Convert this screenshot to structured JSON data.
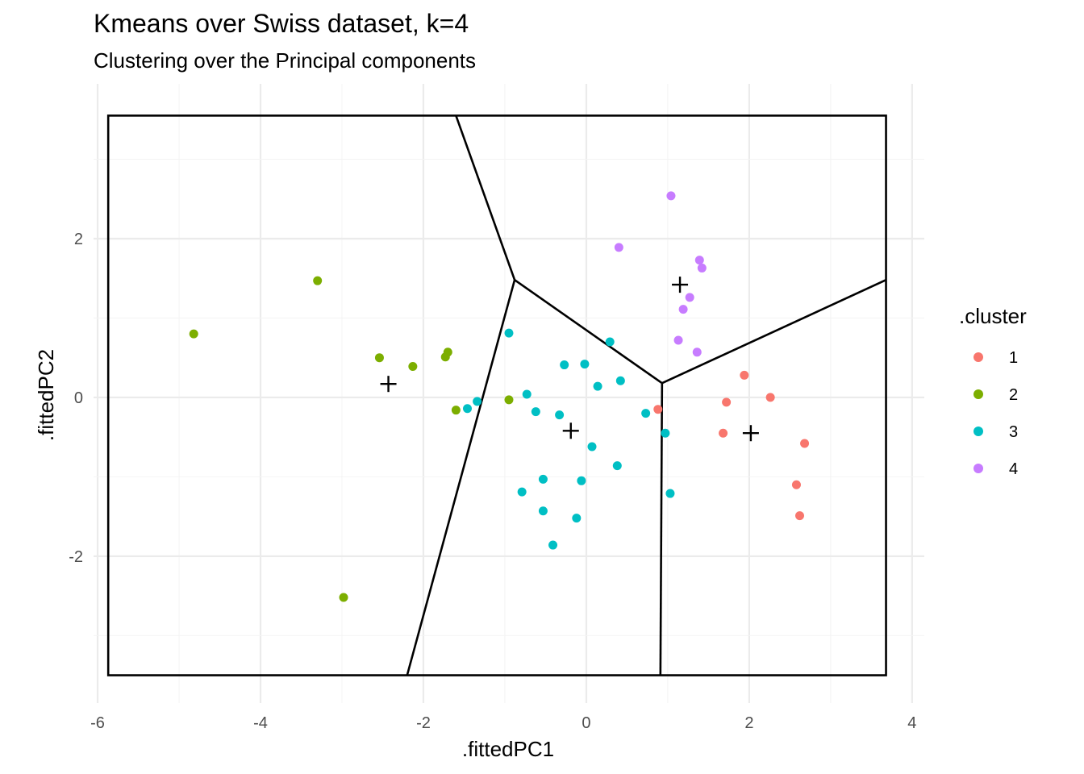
{
  "chart_data": {
    "type": "scatter",
    "title": "Kmeans over Swiss dataset, k=4",
    "subtitle": "Clustering over the Principal components",
    "xlabel": ".fittedPC1",
    "ylabel": ".fittedPC2",
    "xlim": [
      -6.05,
      4.15
    ],
    "ylim": [
      -3.85,
      3.95
    ],
    "x_ticks": [
      -6,
      -4,
      -2,
      0,
      2,
      4
    ],
    "y_ticks": [
      -2,
      0,
      2
    ],
    "x_tick_labels": [
      "-6",
      "-4",
      "-2",
      "0",
      "2",
      "4"
    ],
    "y_tick_labels": [
      "-2",
      "0",
      "2"
    ],
    "grid": true,
    "legend": {
      "title": ".cluster",
      "position": "right"
    },
    "series": [
      {
        "name": "1",
        "color": "#F8766D",
        "points": [
          [
            0.88,
            -0.15
          ],
          [
            1.72,
            -0.06
          ],
          [
            1.68,
            -0.45
          ],
          [
            1.94,
            0.28
          ],
          [
            2.26,
            0.0
          ],
          [
            2.68,
            -0.58
          ],
          [
            2.58,
            -1.1
          ],
          [
            2.62,
            -1.49
          ]
        ]
      },
      {
        "name": "2",
        "color": "#7CAE00",
        "points": [
          [
            -4.82,
            0.8
          ],
          [
            -3.3,
            1.47
          ],
          [
            -2.54,
            0.5
          ],
          [
            -2.13,
            0.39
          ],
          [
            -1.73,
            0.51
          ],
          [
            -1.7,
            0.57
          ],
          [
            -1.6,
            -0.16
          ],
          [
            -0.95,
            -0.03
          ],
          [
            -2.98,
            -2.52
          ]
        ]
      },
      {
        "name": "3",
        "color": "#00BFC4",
        "points": [
          [
            -0.95,
            0.81
          ],
          [
            0.29,
            0.7
          ],
          [
            -0.27,
            0.41
          ],
          [
            -0.02,
            0.42
          ],
          [
            0.42,
            0.21
          ],
          [
            0.14,
            0.14
          ],
          [
            -0.73,
            0.04
          ],
          [
            -1.34,
            -0.05
          ],
          [
            -1.46,
            -0.14
          ],
          [
            -0.62,
            -0.18
          ],
          [
            -0.33,
            -0.22
          ],
          [
            0.73,
            -0.2
          ],
          [
            0.97,
            -0.45
          ],
          [
            0.07,
            -0.62
          ],
          [
            0.38,
            -0.86
          ],
          [
            -0.53,
            -1.03
          ],
          [
            -0.06,
            -1.05
          ],
          [
            -0.79,
            -1.19
          ],
          [
            1.03,
            -1.21
          ],
          [
            -0.53,
            -1.43
          ],
          [
            -0.12,
            -1.52
          ],
          [
            -0.41,
            -1.86
          ]
        ]
      },
      {
        "name": "4",
        "color": "#C77CFF",
        "points": [
          [
            1.04,
            2.54
          ],
          [
            0.4,
            1.89
          ],
          [
            1.39,
            1.73
          ],
          [
            1.42,
            1.63
          ],
          [
            1.27,
            1.26
          ],
          [
            1.19,
            1.11
          ],
          [
            1.13,
            0.72
          ],
          [
            1.36,
            0.57
          ]
        ]
      }
    ],
    "centroids": [
      [
        2.02,
        -0.45
      ],
      [
        -2.43,
        0.17
      ],
      [
        -0.19,
        -0.42
      ],
      [
        1.15,
        1.42
      ]
    ],
    "voronoi_boundary": {
      "x_range": [
        -5.87,
        3.68
      ],
      "y_range": [
        -3.5,
        3.55
      ],
      "vertices": [
        [
          -0.88,
          1.48
        ],
        [
          0.93,
          0.18
        ]
      ],
      "edges": [
        [
          [
            -1.6,
            3.55
          ],
          [
            -0.88,
            1.48
          ]
        ],
        [
          [
            -0.88,
            1.48
          ],
          [
            -2.2,
            -3.5
          ]
        ],
        [
          [
            -0.88,
            1.48
          ],
          [
            0.93,
            0.18
          ]
        ],
        [
          [
            0.93,
            0.18
          ],
          [
            3.68,
            1.48
          ]
        ],
        [
          [
            0.93,
            0.18
          ],
          [
            0.91,
            -3.5
          ]
        ]
      ]
    }
  }
}
